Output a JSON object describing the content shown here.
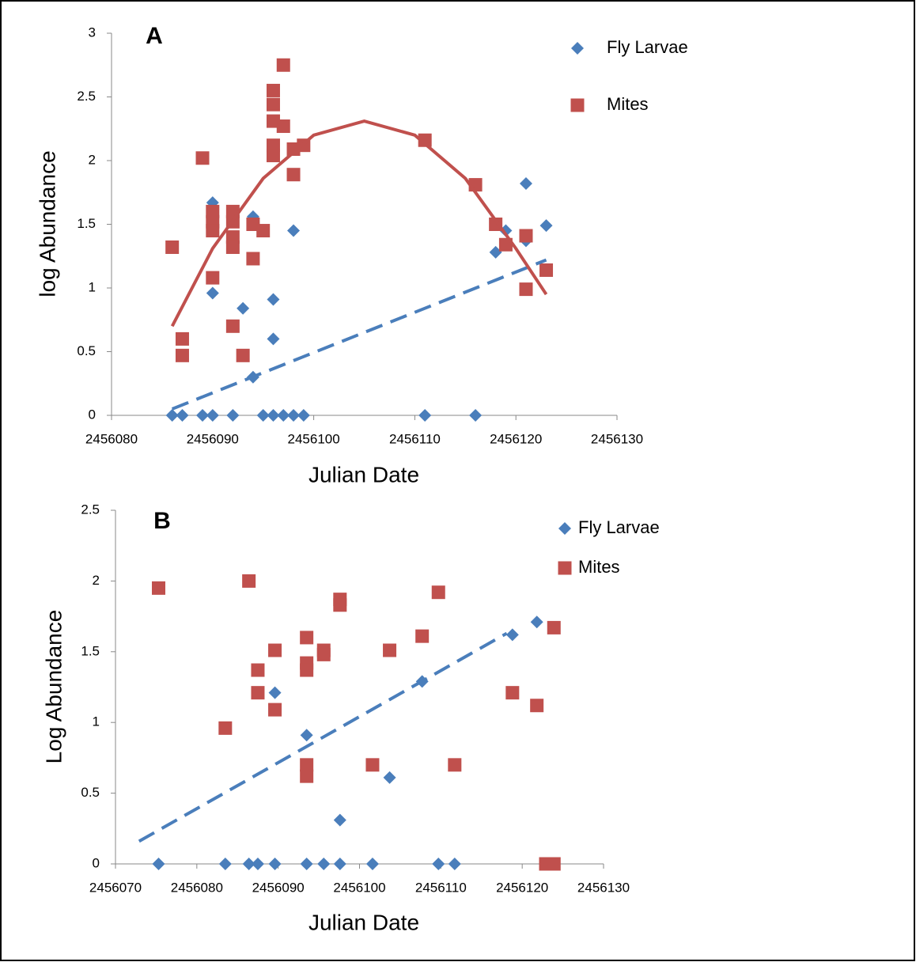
{
  "chart_data": [
    {
      "type": "scatter",
      "title": "A",
      "x_label": "Julian Date",
      "y_label": "log Abundance",
      "xlim": [
        2456080,
        2456130
      ],
      "xticks": [
        2456080,
        2456090,
        2456100,
        2456110,
        2456120,
        2456130
      ],
      "ylim": [
        0,
        3
      ],
      "yticks": [
        0,
        0.5,
        1,
        1.5,
        2,
        2.5,
        3
      ],
      "grid": false,
      "series": [
        {
          "name": "Fly Larvae",
          "color": "#4a7ebb",
          "marker": "diamond",
          "x": [
            2456086,
            2456087,
            2456089,
            2456090,
            2456092,
            2456095,
            2456096,
            2456097,
            2456098,
            2456099,
            2456111,
            2456116,
            2456090,
            2456090,
            2456093,
            2456094,
            2456094,
            2456096,
            2456096,
            2456098,
            2456118,
            2456119,
            2456121,
            2456121,
            2456123
          ],
          "values": [
            0,
            0,
            0,
            0,
            0,
            0,
            0,
            0,
            0,
            0,
            0,
            0,
            1.67,
            0.96,
            0.84,
            1.56,
            0.3,
            0.91,
            0.6,
            1.45,
            1.28,
            1.45,
            1.82,
            1.37,
            1.49
          ]
        },
        {
          "name": "Mites",
          "color": "#c0504d",
          "marker": "square",
          "x": [
            2456086,
            2456087,
            2456087,
            2456089,
            2456090,
            2456090,
            2456090,
            2456090,
            2456092,
            2456092,
            2456092,
            2456092,
            2456092,
            2456093,
            2456094,
            2456094,
            2456095,
            2456096,
            2456096,
            2456096,
            2456096,
            2456096,
            2456097,
            2456097,
            2456098,
            2456098,
            2456099,
            2456111,
            2456116,
            2456118,
            2456119,
            2456121,
            2456121,
            2456123
          ],
          "values": [
            1.32,
            0.6,
            0.47,
            2.02,
            1.6,
            1.52,
            1.45,
            1.08,
            1.6,
            1.52,
            1.4,
            1.32,
            0.7,
            0.47,
            1.5,
            1.23,
            1.45,
            2.55,
            2.44,
            2.31,
            2.12,
            2.04,
            2.75,
            2.27,
            2.09,
            1.89,
            2.12,
            2.16,
            1.81,
            1.5,
            1.34,
            1.41,
            0.99,
            1.14
          ]
        }
      ],
      "trendlines": [
        {
          "fit": "linear",
          "color": "#4a7ebb",
          "dashed": true,
          "x": [
            2456086,
            2456123
          ],
          "y": [
            0.05,
            1.22
          ]
        },
        {
          "fit": "polynomial",
          "color": "#c0504d",
          "dashed": false,
          "x": [
            2456086,
            2456090,
            2456095,
            2456100,
            2456105,
            2456110,
            2456115,
            2456120,
            2456123
          ],
          "y": [
            0.7,
            1.31,
            1.86,
            2.2,
            2.31,
            2.2,
            1.86,
            1.31,
            0.95
          ]
        }
      ]
    },
    {
      "type": "scatter",
      "title": "B",
      "x_label": "Julian Date",
      "y_label": "Log Abundance",
      "xlim": [
        2456070,
        2456130
      ],
      "xticks": [
        2456070,
        2456080,
        2456090,
        2456100,
        2456110,
        2456120,
        2456130
      ],
      "ylim": [
        0,
        2.5
      ],
      "yticks": [
        0,
        0.5,
        1,
        1.5,
        2,
        2.5
      ],
      "grid": false,
      "series": [
        {
          "name": "Fly Larvae",
          "color": "#4a7ebb",
          "marker": "diamond",
          "x": [
            2456075.3,
            2456083.5,
            2456086.4,
            2456087.5,
            2456089.6,
            2456093.5,
            2456095.6,
            2456097.6,
            2456101.6,
            2456109.7,
            2456111.7,
            2456089.6,
            2456093.5,
            2456097.6,
            2456103.7,
            2456107.7,
            2456118.8,
            2456121.8
          ],
          "values": [
            0,
            0,
            0,
            0,
            0,
            0,
            0,
            0,
            0,
            0,
            0,
            1.21,
            0.91,
            0.31,
            0.61,
            1.29,
            1.62,
            1.71
          ]
        },
        {
          "name": "Mites",
          "color": "#c0504d",
          "marker": "square",
          "x": [
            2456075.3,
            2456083.5,
            2456086.4,
            2456087.5,
            2456087.5,
            2456089.6,
            2456089.6,
            2456093.5,
            2456093.5,
            2456093.5,
            2456093.5,
            2456093.5,
            2456095.6,
            2456095.6,
            2456097.6,
            2456097.6,
            2456101.6,
            2456103.7,
            2456107.7,
            2456109.7,
            2456111.7,
            2456118.8,
            2456121.8,
            2456122.9,
            2456123.9,
            2456123.9
          ],
          "values": [
            1.95,
            0.96,
            2.0,
            1.37,
            1.21,
            1.51,
            1.09,
            1.6,
            1.42,
            1.37,
            0.7,
            0.62,
            1.51,
            1.48,
            1.87,
            1.83,
            0.7,
            1.51,
            1.61,
            1.92,
            0.7,
            1.21,
            1.12,
            0,
            0,
            1.67
          ]
        }
      ],
      "trendlines": [
        {
          "fit": "linear",
          "color": "#4a7ebb",
          "dashed": true,
          "x": [
            2456072.9,
            2456118.1
          ],
          "y": [
            0.16,
            1.63
          ]
        }
      ]
    }
  ]
}
